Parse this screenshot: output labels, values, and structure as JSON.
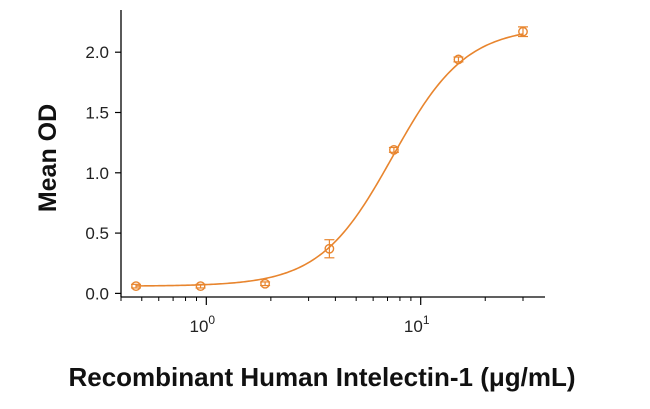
{
  "chart_data": {
    "type": "scatter",
    "title": "",
    "xlabel": "Recombinant Human Intelectin-1 (μg/mL)",
    "ylabel": "Mean OD",
    "x_scale": "log10",
    "xlim": [
      0.4,
      38
    ],
    "ylim": [
      -0.03,
      2.35
    ],
    "grid": false,
    "legend": "none",
    "color": "#e8852e",
    "y_ticks": [
      {
        "value": 0.0,
        "label": "0.0"
      },
      {
        "value": 0.5,
        "label": "0.5"
      },
      {
        "value": 1.0,
        "label": "1.0"
      },
      {
        "value": 1.5,
        "label": "1.5"
      },
      {
        "value": 2.0,
        "label": "2.0"
      }
    ],
    "x_ticks": [
      {
        "value": 1,
        "base": "10",
        "exp": "0"
      },
      {
        "value": 10,
        "base": "10",
        "exp": "1"
      }
    ],
    "series": [
      {
        "x": [
          0.47,
          0.94,
          1.88,
          3.75,
          7.5,
          15,
          30
        ],
        "y": [
          0.06,
          0.06,
          0.08,
          0.37,
          1.19,
          1.94,
          2.17
        ],
        "error": [
          0.015,
          0.015,
          0.015,
          0.075,
          0.02,
          0.02,
          0.04
        ]
      }
    ],
    "fit_curve": {
      "model": "4PL",
      "bottom": 0.06,
      "top": 2.21,
      "ec50": 7.4,
      "hill": 2.55
    }
  }
}
